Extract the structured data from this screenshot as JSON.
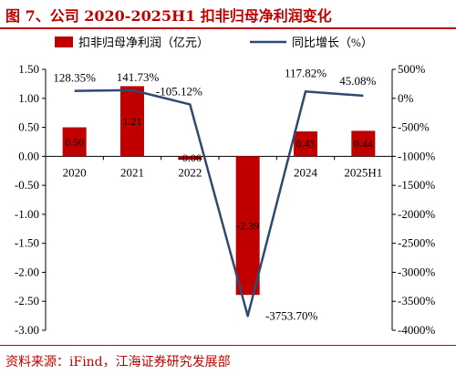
{
  "figure": {
    "title": "图 7、公司 2020-2025H1 扣非归母净利润变化",
    "source": "资料来源：iFind，江海证券研究发展部"
  },
  "chart_data": {
    "type": "bar",
    "categories": [
      "2020",
      "2021",
      "2022",
      "2023",
      "2024",
      "2025H1"
    ],
    "series": [
      {
        "name": "扣非归母净利润（亿元）",
        "type": "bar",
        "axis": "left",
        "color": "#c00000",
        "values": [
          0.5,
          1.21,
          -0.06,
          -2.39,
          0.43,
          0.44
        ],
        "labels": [
          "0.50",
          "1.21",
          "-0.06",
          "-2.39",
          "0.43",
          "0.44"
        ]
      },
      {
        "name": "同比增长（%）",
        "type": "line",
        "axis": "right",
        "color": "#2e4a70",
        "values": [
          128.35,
          141.73,
          -105.12,
          -3753.7,
          117.82,
          45.08
        ],
        "labels": [
          "128.35%",
          "141.73%",
          "-105.12%",
          "-3753.70%",
          "117.82%",
          "45.08%"
        ]
      }
    ],
    "y_left": {
      "ylim": [
        -3.0,
        1.5
      ],
      "ticks": [
        1.5,
        1.0,
        0.5,
        0.0,
        -0.5,
        -1.0,
        -1.5,
        -2.0,
        -2.5,
        -3.0
      ],
      "tick_labels": [
        "1.50",
        "1.00",
        "0.50",
        "0.00",
        "-0.50",
        "-1.00",
        "-1.50",
        "-2.00",
        "-2.50",
        "-3.00"
      ]
    },
    "y_right": {
      "ylim": [
        -4000,
        500
      ],
      "ticks": [
        500,
        0,
        -500,
        -1000,
        -1500,
        -2000,
        -2500,
        -3000,
        -3500,
        -4000
      ],
      "tick_labels": [
        "500%",
        "0%",
        "-500%",
        "-1000%",
        "-1500%",
        "-2000%",
        "-2500%",
        "-3000%",
        "-3500%",
        "-4000%"
      ]
    },
    "grid": false,
    "legend_position": "top"
  }
}
